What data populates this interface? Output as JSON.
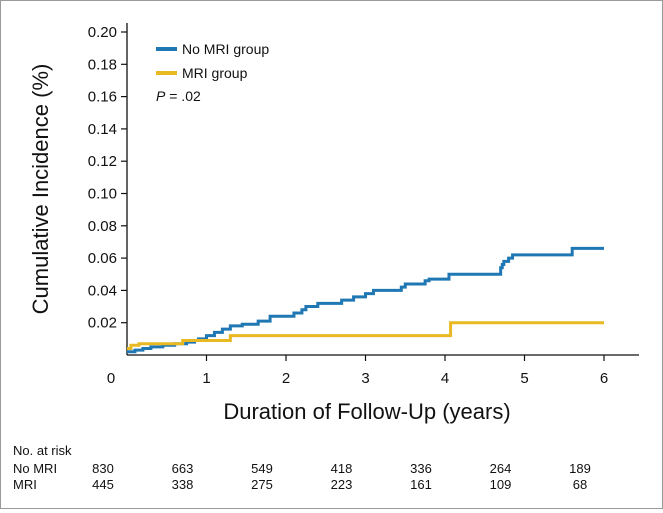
{
  "chart_data": {
    "type": "line",
    "title": "",
    "xlabel": "Duration of Follow-Up (years)",
    "ylabel": "Cumulative Incidence (%)",
    "xlim": [
      0,
      6
    ],
    "ylim": [
      0,
      0.2
    ],
    "x_ticks": [
      "0",
      "1",
      "2",
      "3",
      "4",
      "5",
      "6"
    ],
    "y_ticks": [
      "0.02",
      "0.04",
      "0.06",
      "0.08",
      "0.10",
      "0.12",
      "0.14",
      "0.16",
      "0.18",
      "0.20"
    ],
    "grid": false,
    "legend_position": "top-left",
    "annotation": {
      "p_italic": "P",
      "p_rest": " = .02"
    },
    "series": [
      {
        "name": "No MRI group",
        "color": "#1f78b4",
        "step": true,
        "points": [
          [
            0,
            0.002
          ],
          [
            0.1,
            0.003
          ],
          [
            0.2,
            0.004
          ],
          [
            0.3,
            0.005
          ],
          [
            0.45,
            0.006
          ],
          [
            0.6,
            0.007
          ],
          [
            0.75,
            0.008
          ],
          [
            0.85,
            0.009
          ],
          [
            0.9,
            0.01
          ],
          [
            1.0,
            0.012
          ],
          [
            1.1,
            0.014
          ],
          [
            1.2,
            0.016
          ],
          [
            1.3,
            0.018
          ],
          [
            1.45,
            0.019
          ],
          [
            1.65,
            0.021
          ],
          [
            1.8,
            0.024
          ],
          [
            2.1,
            0.026
          ],
          [
            2.2,
            0.028
          ],
          [
            2.25,
            0.03
          ],
          [
            2.4,
            0.032
          ],
          [
            2.7,
            0.034
          ],
          [
            2.85,
            0.036
          ],
          [
            3.0,
            0.038
          ],
          [
            3.1,
            0.04
          ],
          [
            3.45,
            0.042
          ],
          [
            3.5,
            0.044
          ],
          [
            3.75,
            0.046
          ],
          [
            3.8,
            0.047
          ],
          [
            4.05,
            0.05
          ],
          [
            4.7,
            0.054
          ],
          [
            4.72,
            0.056
          ],
          [
            4.74,
            0.058
          ],
          [
            4.8,
            0.06
          ],
          [
            4.85,
            0.062
          ],
          [
            5.6,
            0.066
          ],
          [
            6.0,
            0.066
          ]
        ]
      },
      {
        "name": "MRI group",
        "color": "#e8b923",
        "step": true,
        "points": [
          [
            0,
            0.004
          ],
          [
            0.05,
            0.006
          ],
          [
            0.15,
            0.007
          ],
          [
            0.7,
            0.009
          ],
          [
            1.3,
            0.012
          ],
          [
            4.07,
            0.02
          ],
          [
            6.0,
            0.02
          ]
        ]
      }
    ],
    "risk_table": {
      "title": "No. at risk",
      "rows": [
        {
          "label": "No MRI",
          "values": [
            "830",
            "663",
            "549",
            "418",
            "336",
            "264",
            "189"
          ]
        },
        {
          "label": "MRI",
          "values": [
            "445",
            "338",
            "275",
            "223",
            "161",
            "109",
            "68"
          ]
        }
      ]
    }
  }
}
